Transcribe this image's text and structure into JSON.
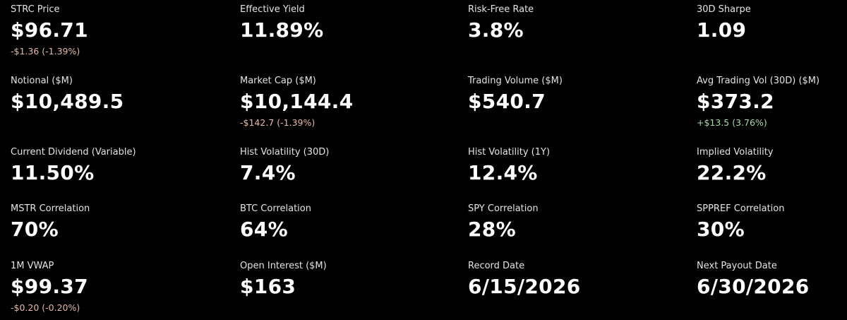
{
  "metrics": [
    [
      {
        "label": "STRC Price",
        "value": "$96.71",
        "change": {
          "text": "-$1.36 (-1.39%)",
          "color": "#e6b9a6"
        }
      },
      {
        "label": "Effective Yield",
        "value": "11.89%"
      },
      {
        "label": "Risk-Free Rate",
        "value": "3.8%"
      },
      {
        "label": "30D Sharpe",
        "value": "1.09"
      }
    ],
    [
      {
        "label": "Notional ($M)",
        "value": "$10,489.5"
      },
      {
        "label": "Market Cap ($M)",
        "value": "$10,144.4",
        "change": {
          "text": "-$142.7 (-1.39%)",
          "color": "#e6b9a6"
        }
      },
      {
        "label": "Trading Volume ($M)",
        "value": "$540.7"
      },
      {
        "label": "Avg Trading Vol (30D) ($M)",
        "value": "$373.2",
        "change": {
          "text": "+$13.5 (3.76%)",
          "color": "#a8dca8"
        }
      }
    ],
    [
      {
        "label": "Current Dividend (Variable)",
        "value": "11.50%"
      },
      {
        "label": "Hist Volatility (30D)",
        "value": "7.4%"
      },
      {
        "label": "Hist Volatility (1Y)",
        "value": "12.4%"
      },
      {
        "label": "Implied Volatility",
        "value": "22.2%"
      }
    ],
    [
      {
        "label": "MSTR Correlation",
        "value": "70%"
      },
      {
        "label": "BTC Correlation",
        "value": "64%"
      },
      {
        "label": "SPY Correlation",
        "value": "28%"
      },
      {
        "label": "SPPREF Correlation",
        "value": "30%"
      }
    ],
    [
      {
        "label": "1M VWAP",
        "value": "$99.37",
        "change": {
          "text": "-$0.20 (-0.20%)",
          "color": "#e6b9a6"
        }
      },
      {
        "label": "Open Interest ($M)",
        "value": "$163"
      },
      {
        "label": "Record Date",
        "value": "6/15/2026"
      },
      {
        "label": "Next Payout Date",
        "value": "6/30/2026"
      }
    ]
  ]
}
